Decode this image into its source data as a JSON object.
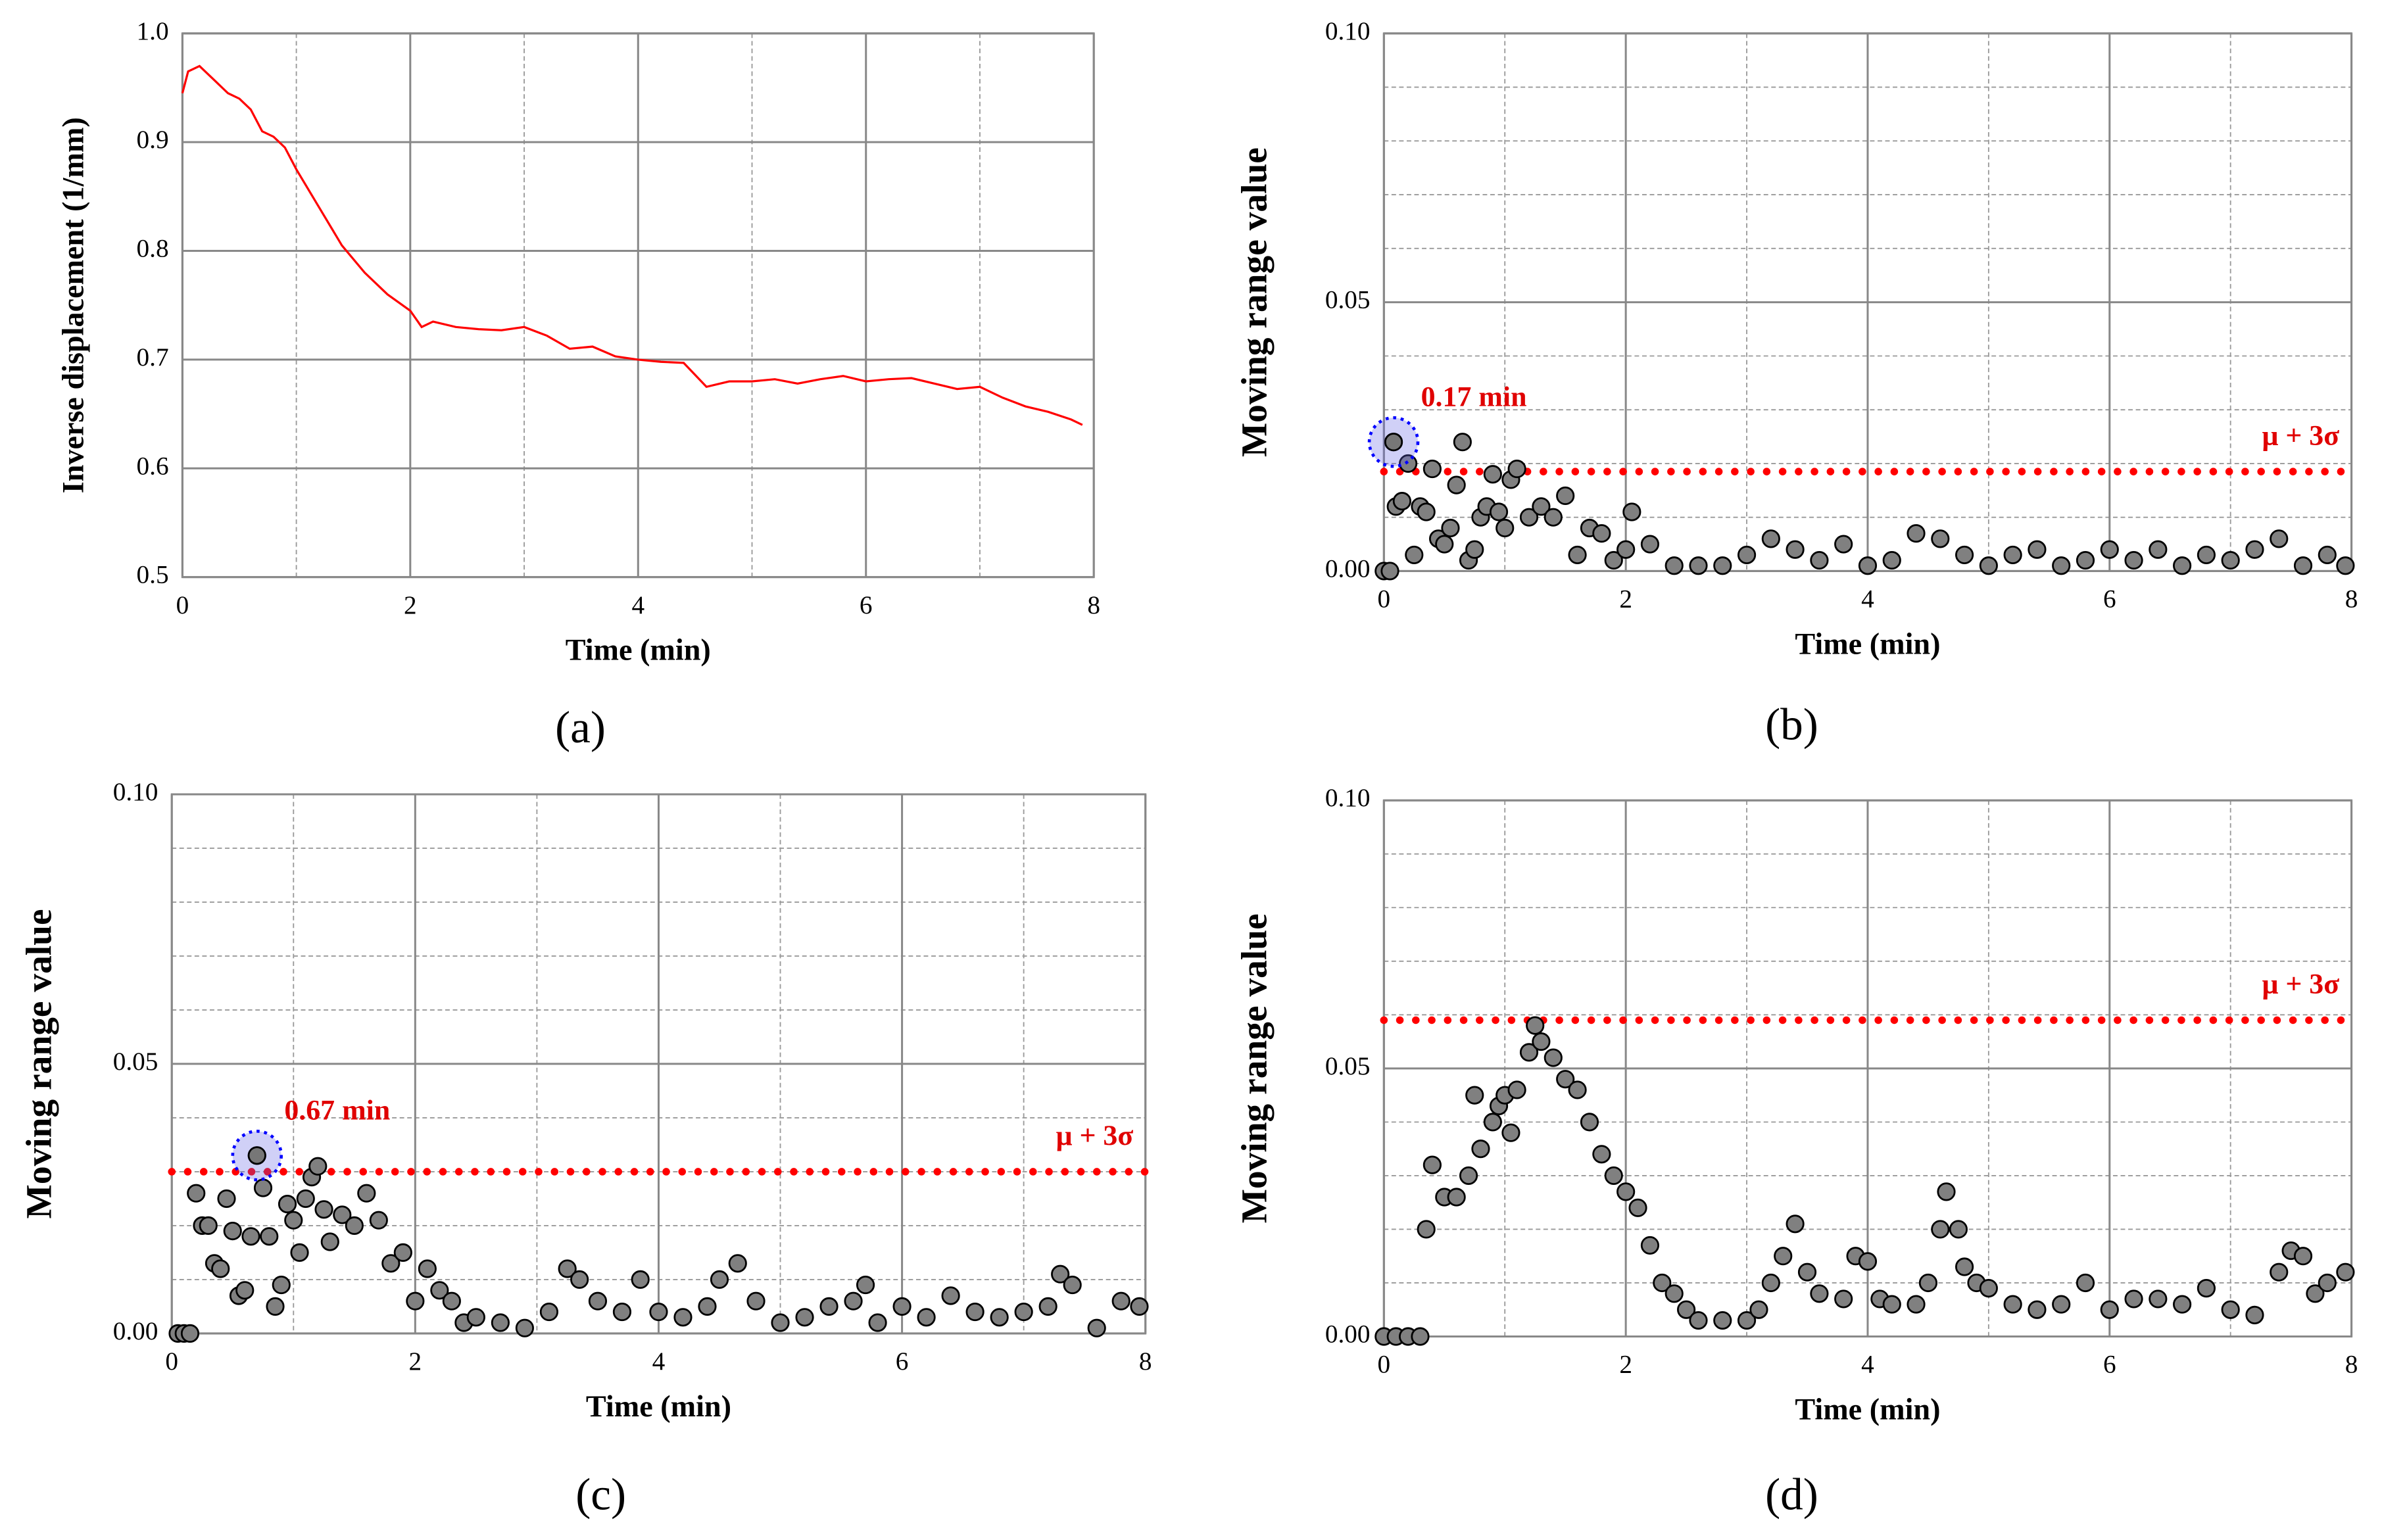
{
  "chart_data": [
    {
      "type": "line",
      "caption": "(a)",
      "xlabel": "Time (min)",
      "ylabel": "Inverse displacement (1/mm)",
      "color": "#ff0000",
      "xlim": [
        0,
        8
      ],
      "ylim": [
        0.5,
        1
      ],
      "xticks": [
        0,
        2,
        4,
        6,
        8
      ],
      "minor_xticks": [
        1,
        3,
        5,
        7
      ],
      "yticks": [
        {
          "value": 0.5,
          "label": "0.5"
        },
        0.6,
        0.7,
        0.8,
        0.9,
        {
          "value": 1,
          "label": "1.0"
        }
      ],
      "minor_yticks": [],
      "grid": true,
      "x": [
        0,
        0.05,
        0.15,
        0.3,
        0.4,
        0.5,
        0.6,
        0.7,
        0.8,
        0.9,
        1.0,
        1.2,
        1.4,
        1.6,
        1.8,
        2.0,
        2.1,
        2.2,
        2.4,
        2.6,
        2.8,
        3.0,
        3.2,
        3.4,
        3.6,
        3.8,
        4.0,
        4.2,
        4.4,
        4.6,
        4.8,
        5.0,
        5.2,
        5.4,
        5.6,
        5.8,
        6.0,
        6.2,
        6.4,
        6.6,
        6.8,
        7.0,
        7.2,
        7.4,
        7.6,
        7.8,
        7.9
      ],
      "values": [
        0.945,
        0.965,
        0.97,
        0.955,
        0.945,
        0.94,
        0.93,
        0.91,
        0.905,
        0.895,
        0.875,
        0.84,
        0.805,
        0.78,
        0.76,
        0.745,
        0.73,
        0.735,
        0.73,
        0.728,
        0.727,
        0.73,
        0.722,
        0.71,
        0.712,
        0.703,
        0.7,
        0.698,
        0.697,
        0.675,
        0.68,
        0.68,
        0.682,
        0.678,
        0.682,
        0.685,
        0.68,
        0.682,
        0.683,
        0.678,
        0.673,
        0.675,
        0.665,
        0.657,
        0.652,
        0.645,
        0.64
      ]
    },
    {
      "type": "scatter",
      "caption": "(b)",
      "xlabel": "Time (min)",
      "ylabel": "Moving range value",
      "color": "#808080",
      "xlim": [
        0,
        8
      ],
      "ylim": [
        0,
        0.1
      ],
      "xticks": [
        0,
        2,
        4,
        6,
        8
      ],
      "minor_xticks": [
        1,
        3,
        5,
        7
      ],
      "yticks": [
        {
          "value": 0,
          "label": "0.00"
        },
        0.05,
        {
          "value": 0.1,
          "label": "0.10"
        }
      ],
      "minor_yticks": [
        0.01,
        0.02,
        0.03,
        0.04,
        0.06,
        0.07,
        0.08,
        0.09
      ],
      "grid": true,
      "threshold": 0.0185,
      "threshold_label": "μ + 3σ",
      "threshold_color": "#ff0000",
      "annotation": {
        "text": "0.17 min",
        "x": 0.08,
        "y": 0.024
      },
      "x": [
        0,
        0.05,
        0.08,
        0.1,
        0.15,
        0.2,
        0.25,
        0.3,
        0.35,
        0.4,
        0.45,
        0.5,
        0.55,
        0.6,
        0.65,
        0.7,
        0.75,
        0.8,
        0.85,
        0.9,
        0.95,
        1.0,
        1.05,
        1.1,
        1.2,
        1.3,
        1.4,
        1.5,
        1.6,
        1.7,
        1.8,
        1.9,
        2.0,
        2.05,
        2.2,
        2.4,
        2.6,
        2.8,
        3.0,
        3.2,
        3.4,
        3.6,
        3.8,
        4.0,
        4.2,
        4.4,
        4.6,
        4.8,
        5.0,
        5.2,
        5.4,
        5.6,
        5.8,
        6.0,
        6.2,
        6.4,
        6.6,
        6.8,
        7.0,
        7.2,
        7.4,
        7.6,
        7.8,
        7.95
      ],
      "values": [
        0,
        0,
        0.024,
        0.012,
        0.013,
        0.02,
        0.003,
        0.012,
        0.011,
        0.019,
        0.006,
        0.005,
        0.008,
        0.016,
        0.024,
        0.002,
        0.004,
        0.01,
        0.012,
        0.018,
        0.011,
        0.008,
        0.017,
        0.019,
        0.01,
        0.012,
        0.01,
        0.014,
        0.003,
        0.008,
        0.007,
        0.002,
        0.004,
        0.011,
        0.005,
        0.001,
        0.001,
        0.001,
        0.003,
        0.006,
        0.004,
        0.002,
        0.005,
        0.001,
        0.002,
        0.007,
        0.006,
        0.003,
        0.001,
        0.003,
        0.004,
        0.001,
        0.002,
        0.004,
        0.002,
        0.004,
        0.001,
        0.003,
        0.002,
        0.004,
        0.006,
        0.001,
        0.003,
        0.001
      ]
    },
    {
      "type": "scatter",
      "caption": "(c)",
      "xlabel": "Time (min)",
      "ylabel": "Moving range value",
      "color": "#808080",
      "xlim": [
        0,
        8
      ],
      "ylim": [
        0,
        0.1
      ],
      "xticks": [
        0,
        2,
        4,
        6,
        8
      ],
      "minor_xticks": [
        1,
        3,
        5,
        7
      ],
      "yticks": [
        {
          "value": 0,
          "label": "0.00"
        },
        0.05,
        {
          "value": 0.1,
          "label": "0.10"
        }
      ],
      "minor_yticks": [
        0.01,
        0.02,
        0.03,
        0.04,
        0.06,
        0.07,
        0.08,
        0.09
      ],
      "grid": true,
      "threshold": 0.03,
      "threshold_label": "μ + 3σ",
      "threshold_color": "#ff0000",
      "annotation": {
        "text": "0.67 min",
        "x": 0.7,
        "y": 0.033
      },
      "x": [
        0.05,
        0.1,
        0.15,
        0.2,
        0.25,
        0.3,
        0.35,
        0.4,
        0.45,
        0.5,
        0.55,
        0.6,
        0.65,
        0.7,
        0.75,
        0.8,
        0.85,
        0.9,
        0.95,
        1.0,
        1.05,
        1.1,
        1.15,
        1.2,
        1.25,
        1.3,
        1.4,
        1.5,
        1.6,
        1.7,
        1.8,
        1.9,
        2.0,
        2.1,
        2.2,
        2.3,
        2.4,
        2.5,
        2.7,
        2.9,
        3.1,
        3.25,
        3.35,
        3.5,
        3.7,
        3.85,
        4.0,
        4.2,
        4.4,
        4.5,
        4.65,
        4.8,
        5.0,
        5.2,
        5.4,
        5.6,
        5.7,
        5.8,
        6.0,
        6.2,
        6.4,
        6.6,
        6.8,
        7.0,
        7.2,
        7.3,
        7.4,
        7.6,
        7.8,
        7.95
      ],
      "values": [
        0,
        0,
        0,
        0.026,
        0.02,
        0.02,
        0.013,
        0.012,
        0.025,
        0.019,
        0.007,
        0.008,
        0.018,
        0.033,
        0.027,
        0.018,
        0.005,
        0.009,
        0.024,
        0.021,
        0.015,
        0.025,
        0.029,
        0.031,
        0.023,
        0.017,
        0.022,
        0.02,
        0.026,
        0.021,
        0.013,
        0.015,
        0.006,
        0.012,
        0.008,
        0.006,
        0.002,
        0.003,
        0.002,
        0.001,
        0.004,
        0.012,
        0.01,
        0.006,
        0.004,
        0.01,
        0.004,
        0.003,
        0.005,
        0.01,
        0.013,
        0.006,
        0.002,
        0.003,
        0.005,
        0.006,
        0.009,
        0.002,
        0.005,
        0.003,
        0.007,
        0.004,
        0.003,
        0.004,
        0.005,
        0.011,
        0.009,
        0.001,
        0.006,
        0.005
      ]
    },
    {
      "type": "scatter",
      "caption": "(d)",
      "xlabel": "Time (min)",
      "ylabel": "Moving range value",
      "color": "#808080",
      "xlim": [
        0,
        8
      ],
      "ylim": [
        0,
        0.1
      ],
      "xticks": [
        0,
        2,
        4,
        6,
        8
      ],
      "minor_xticks": [
        1,
        3,
        5,
        7
      ],
      "yticks": [
        {
          "value": 0,
          "label": "0.00"
        },
        0.05,
        {
          "value": 0.1,
          "label": "0.10"
        }
      ],
      "minor_yticks": [
        0.01,
        0.02,
        0.03,
        0.04,
        0.06,
        0.07,
        0.08,
        0.09
      ],
      "grid": true,
      "threshold": 0.059,
      "threshold_label": "μ + 3σ",
      "threshold_color": "#ff0000",
      "x": [
        0,
        0.1,
        0.2,
        0.3,
        0.35,
        0.4,
        0.5,
        0.6,
        0.7,
        0.75,
        0.8,
        0.9,
        0.95,
        1.0,
        1.05,
        1.1,
        1.2,
        1.25,
        1.3,
        1.4,
        1.5,
        1.6,
        1.7,
        1.8,
        1.9,
        2.0,
        2.1,
        2.2,
        2.3,
        2.4,
        2.5,
        2.6,
        2.8,
        3.0,
        3.1,
        3.2,
        3.3,
        3.4,
        3.5,
        3.6,
        3.8,
        3.9,
        4.0,
        4.1,
        4.2,
        4.4,
        4.5,
        4.6,
        4.65,
        4.75,
        4.8,
        4.9,
        5.0,
        5.2,
        5.4,
        5.6,
        5.8,
        6.0,
        6.2,
        6.4,
        6.6,
        6.8,
        7.0,
        7.2,
        7.4,
        7.5,
        7.6,
        7.7,
        7.8,
        7.95
      ],
      "values": [
        0,
        0,
        0,
        0,
        0.02,
        0.032,
        0.026,
        0.026,
        0.03,
        0.045,
        0.035,
        0.04,
        0.043,
        0.045,
        0.038,
        0.046,
        0.053,
        0.058,
        0.055,
        0.052,
        0.048,
        0.046,
        0.04,
        0.034,
        0.03,
        0.027,
        0.024,
        0.017,
        0.01,
        0.008,
        0.005,
        0.003,
        0.003,
        0.003,
        0.005,
        0.01,
        0.015,
        0.021,
        0.012,
        0.008,
        0.007,
        0.015,
        0.014,
        0.007,
        0.006,
        0.006,
        0.01,
        0.02,
        0.027,
        0.02,
        0.013,
        0.01,
        0.009,
        0.006,
        0.005,
        0.006,
        0.01,
        0.005,
        0.007,
        0.007,
        0.006,
        0.009,
        0.005,
        0.004,
        0.012,
        0.016,
        0.015,
        0.008,
        0.01,
        0.012
      ]
    }
  ]
}
